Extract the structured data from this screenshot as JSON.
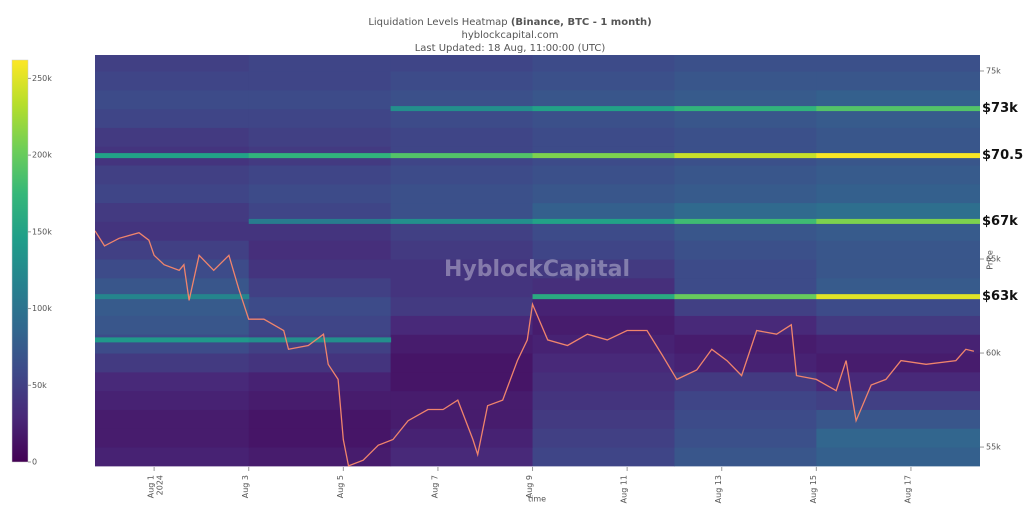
{
  "chart_data": {
    "type": "heatmap",
    "title": "Liquidation Levels Heatmap",
    "title_bold": "(Binance, BTC - 1 month)",
    "subtitle": "hyblockcapital.com",
    "updated": "Last Updated: 18 Aug, 11:00:00 (UTC)",
    "watermark": "HyblockCapital",
    "x_label": "time",
    "y_label": "Price",
    "x_year_label": "2024",
    "colorscale": "viridis",
    "xlim": [
      -0.25,
      18.46
    ],
    "ylim": [
      53940,
      75850
    ],
    "clim": [
      0,
      262000
    ],
    "xticks": [
      {
        "value": 1,
        "label": "Aug 1"
      },
      {
        "value": 3,
        "label": "Aug 3"
      },
      {
        "value": 5,
        "label": "Aug 5"
      },
      {
        "value": 7,
        "label": "Aug 7"
      },
      {
        "value": 9,
        "label": "Aug 9"
      },
      {
        "value": 11,
        "label": "Aug 11"
      },
      {
        "value": 13,
        "label": "Aug 13"
      },
      {
        "value": 15,
        "label": "Aug 15"
      },
      {
        "value": 17,
        "label": "Aug 17"
      }
    ],
    "yticks": [
      {
        "value": 55000,
        "label": "55k"
      },
      {
        "value": 60000,
        "label": "60k"
      },
      {
        "value": 65000,
        "label": "65k"
      },
      {
        "value": 75000,
        "label": "75k"
      }
    ],
    "cticks": [
      0,
      {
        "value": 50000,
        "label": "50k"
      },
      {
        "value": 100000,
        "label": "100k"
      },
      {
        "value": 150000,
        "label": "150k"
      },
      {
        "value": 200000,
        "label": "200k"
      },
      {
        "value": 250000,
        "label": "250k"
      }
    ],
    "annotations": [
      {
        "text": "$73k",
        "value": 73000
      },
      {
        "text": "$70.5k",
        "value": 70500
      },
      {
        "text": "$67k",
        "value": 67000
      },
      {
        "text": "$63k",
        "value": 63000
      }
    ],
    "x_bins": [
      -0.25,
      3,
      6,
      9,
      12,
      15,
      18.46
    ],
    "y_bins": [
      54000,
      55000,
      56000,
      57000,
      58000,
      59000,
      60000,
      61000,
      62000,
      63000,
      64000,
      65000,
      66000,
      67000,
      68000,
      69000,
      70000,
      71000,
      72000,
      73000,
      74000,
      75000,
      76000
    ],
    "z": [
      [
        25000,
        20000,
        30000,
        55000,
        70000,
        80000
      ],
      [
        20000,
        15000,
        25000,
        50000,
        65000,
        85000
      ],
      [
        20000,
        15000,
        20000,
        45000,
        60000,
        70000
      ],
      [
        25000,
        20000,
        20000,
        40000,
        55000,
        50000
      ],
      [
        30000,
        25000,
        15000,
        35000,
        45000,
        30000
      ],
      [
        45000,
        40000,
        15000,
        30000,
        25000,
        20000
      ],
      [
        60000,
        50000,
        20000,
        25000,
        20000,
        25000
      ],
      [
        70000,
        55000,
        30000,
        20000,
        30000,
        45000
      ],
      [
        75000,
        60000,
        45000,
        25000,
        50000,
        60000
      ],
      [
        70000,
        50000,
        40000,
        35000,
        60000,
        75000
      ],
      [
        60000,
        40000,
        40000,
        45000,
        60000,
        70000
      ],
      [
        50000,
        35000,
        45000,
        55000,
        65000,
        70000
      ],
      [
        40000,
        40000,
        50000,
        60000,
        70000,
        75000
      ],
      [
        45000,
        55000,
        65000,
        80000,
        90000,
        95000
      ],
      [
        55000,
        60000,
        65000,
        70000,
        75000,
        80000
      ],
      [
        50000,
        55000,
        60000,
        65000,
        70000,
        75000
      ],
      [
        40000,
        45000,
        55000,
        60000,
        65000,
        70000
      ],
      [
        45000,
        50000,
        55000,
        60000,
        65000,
        70000
      ],
      [
        55000,
        55000,
        60000,
        65000,
        70000,
        75000
      ],
      [
        60000,
        60000,
        65000,
        70000,
        75000,
        80000
      ],
      [
        55000,
        55000,
        60000,
        65000,
        70000,
        70000
      ],
      [
        50000,
        55000,
        55000,
        60000,
        65000,
        65000
      ]
    ],
    "levels": [
      {
        "price": 70500,
        "values": [
          150000,
          170000,
          190000,
          210000,
          240000,
          260000
        ]
      },
      {
        "price": 73000,
        "values": [
          null,
          null,
          130000,
          150000,
          170000,
          190000
        ]
      },
      {
        "price": 67000,
        "values": [
          null,
          110000,
          130000,
          150000,
          180000,
          210000
        ]
      },
      {
        "price": 63000,
        "values": [
          120000,
          null,
          null,
          160000,
          200000,
          250000
        ]
      },
      {
        "price": 60700,
        "values": [
          140000,
          130000,
          null,
          null,
          null,
          null
        ]
      }
    ],
    "series": [
      {
        "name": "BTC price",
        "color": "#f0846c",
        "x": [
          -0.25,
          -0.05,
          0.26,
          0.68,
          0.89,
          1.0,
          1.21,
          1.53,
          1.63,
          1.74,
          1.95,
          2.26,
          2.58,
          2.79,
          3.0,
          3.32,
          3.74,
          3.84,
          4.26,
          4.58,
          4.68,
          4.89,
          5.0,
          5.11,
          5.42,
          5.74,
          6.05,
          6.37,
          6.79,
          7.11,
          7.42,
          7.74,
          7.84,
          8.05,
          8.37,
          8.68,
          8.89,
          9.0,
          9.32,
          9.74,
          10.16,
          10.58,
          11.0,
          11.42,
          11.74,
          12.05,
          12.47,
          12.79,
          13.11,
          13.42,
          13.74,
          14.16,
          14.47,
          14.58,
          15.0,
          15.42,
          15.63,
          15.84,
          16.16,
          16.47,
          16.79,
          17.32,
          17.95,
          18.16,
          18.33
        ],
        "values": [
          66500,
          65700,
          66100,
          66400,
          66000,
          65200,
          64700,
          64400,
          64700,
          62800,
          65200,
          64400,
          65200,
          63400,
          61800,
          61800,
          61200,
          60200,
          60400,
          61000,
          59400,
          58600,
          55400,
          54000,
          54300,
          55100,
          55400,
          56400,
          57000,
          57000,
          57500,
          55400,
          54600,
          57200,
          57500,
          59600,
          60700,
          62600,
          60700,
          60400,
          61000,
          60700,
          61200,
          61200,
          59900,
          58600,
          59100,
          60200,
          59600,
          58800,
          61200,
          61000,
          61500,
          58800,
          58600,
          58000,
          59600,
          56400,
          58300,
          58600,
          59600,
          59400,
          59600,
          60200,
          60100
        ]
      }
    ]
  }
}
